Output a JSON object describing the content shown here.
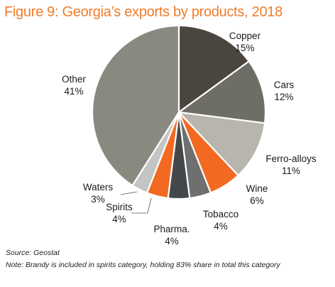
{
  "chart_data": {
    "type": "pie",
    "title_prefix": "Figure 9:",
    "title": "Georgia’s exports by products, 2018",
    "slices": [
      {
        "label": "Copper",
        "value": 15,
        "value_label": "15%",
        "color": "#4a463f"
      },
      {
        "label": "Cars",
        "value": 12,
        "value_label": "12%",
        "color": "#6e6d66"
      },
      {
        "label": "Ferro-alloys",
        "value": 11,
        "value_label": "11%",
        "color": "#b7b5ad"
      },
      {
        "label": "Wine",
        "value": 6,
        "value_label": "6%",
        "color": "#f26a21"
      },
      {
        "label": "Tobacco",
        "value": 4,
        "value_label": "4%",
        "color": "#6f6f6f"
      },
      {
        "label": "Pharma.",
        "value": 4,
        "value_label": "4%",
        "color": "#45484a"
      },
      {
        "label": "Spirits",
        "value": 4,
        "value_label": "4%",
        "color": "#f26a21"
      },
      {
        "label": "Waters",
        "value": 3,
        "value_label": "3%",
        "color": "#c2c5c4"
      },
      {
        "label": "Other",
        "value": 41,
        "value_label": "41%",
        "color": "#8a8980"
      }
    ]
  },
  "notes": {
    "source": "Source: Geostat",
    "note": "Note: Brandy is included in spirits category, holding 83% share in total this category"
  }
}
